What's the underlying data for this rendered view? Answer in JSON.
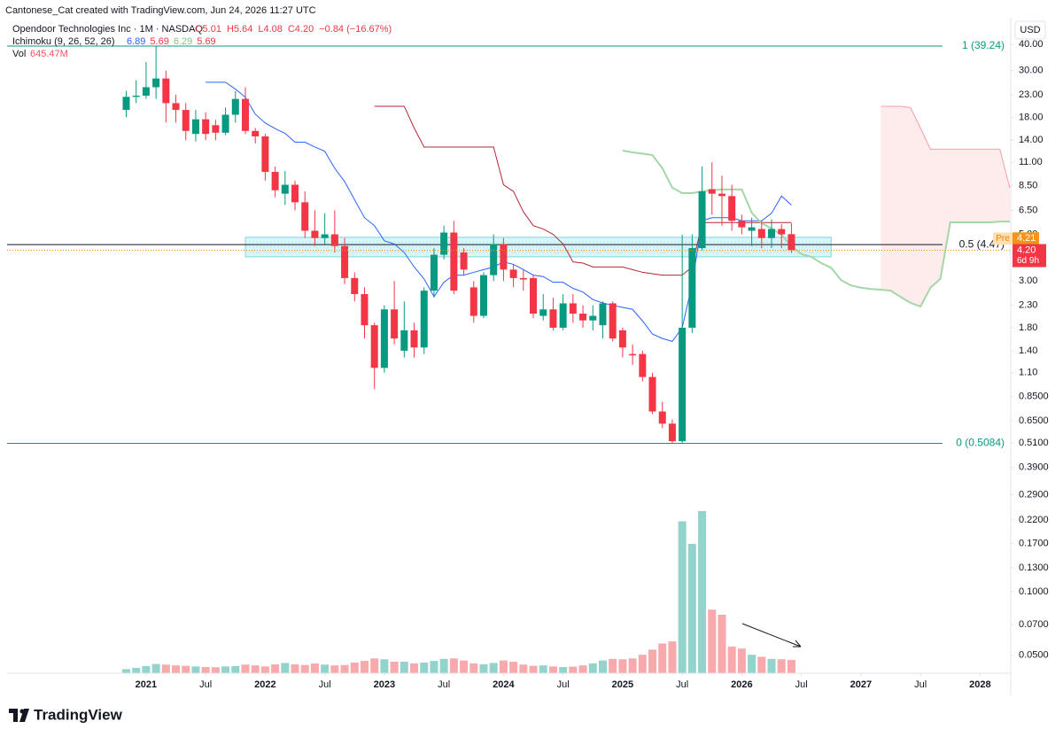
{
  "header": {
    "attribution": "Cantonese_Cat created with TradingView.com, Jun 24, 2026 11:27 UTC",
    "symbol": "Opendoor Technologies Inc · 1M · NASDAQ",
    "quote": [
      "O5.01",
      "H5.64",
      "L4.08",
      "C4.20",
      "−0.84 (−16.67%)"
    ],
    "indicator": "Ichimoku (9, 26, 52, 26)",
    "indicator_values": [
      "6.89",
      "5.69",
      "6.29",
      "5.69"
    ],
    "volume_label": "Vol",
    "volume_value": "645.47M"
  },
  "footer": {
    "brand": "TradingView"
  },
  "chart_data": {
    "type": "candlestick",
    "currency": "USD",
    "log_scale": true,
    "x": [
      "2020-11",
      "2020-12",
      "2021-01",
      "2021-02",
      "2021-03",
      "2021-04",
      "2021-05",
      "2021-06",
      "2021-07",
      "2021-08",
      "2021-09",
      "2021-10",
      "2021-11",
      "2021-12",
      "2022-01",
      "2022-02",
      "2022-03",
      "2022-04",
      "2022-05",
      "2022-06",
      "2022-07",
      "2022-08",
      "2022-09",
      "2022-10",
      "2022-11",
      "2022-12",
      "2023-01",
      "2023-02",
      "2023-03",
      "2023-04",
      "2023-05",
      "2023-06",
      "2023-07",
      "2023-08",
      "2023-09",
      "2023-10",
      "2023-11",
      "2023-12",
      "2024-01",
      "2024-02",
      "2024-03",
      "2024-04",
      "2024-05",
      "2024-06",
      "2024-07",
      "2024-08",
      "2024-09",
      "2024-10",
      "2024-11",
      "2024-12",
      "2025-01",
      "2025-02",
      "2025-03",
      "2025-04",
      "2025-05",
      "2025-06",
      "2025-07",
      "2025-08",
      "2025-09",
      "2025-10",
      "2025-11",
      "2025-12",
      "2026-01",
      "2026-02",
      "2026-03",
      "2026-04",
      "2026-05",
      "2026-06",
      "2026-07",
      "2026-08",
      "2026-09",
      "2026-10",
      "2026-11",
      "2026-12",
      "2027-01",
      "2027-02",
      "2027-03",
      "2027-04",
      "2027-05",
      "2027-06",
      "2027-07",
      "2027-08",
      "2027-09",
      "2027-10",
      "2027-11",
      "2027-12",
      "2028-01",
      "2028-02",
      "2028-03",
      "2028-04"
    ],
    "xlim": [
      "2019-11",
      "2028-04"
    ],
    "xticks": [
      {
        "value": "2021-01",
        "label": "2021"
      },
      {
        "value": "2021-07",
        "label": "Jul"
      },
      {
        "value": "2022-01",
        "label": "2022"
      },
      {
        "value": "2022-07",
        "label": "Jul"
      },
      {
        "value": "2023-01",
        "label": "2023"
      },
      {
        "value": "2023-07",
        "label": "Jul"
      },
      {
        "value": "2024-01",
        "label": "2024"
      },
      {
        "value": "2024-07",
        "label": "Jul"
      },
      {
        "value": "2025-01",
        "label": "2025"
      },
      {
        "value": "2025-07",
        "label": "Jul"
      },
      {
        "value": "2026-01",
        "label": "2026"
      },
      {
        "value": "2026-07",
        "label": "Jul"
      },
      {
        "value": "2027-01",
        "label": "2027"
      },
      {
        "value": "2027-07",
        "label": "Jul"
      },
      {
        "value": "2028-01",
        "label": "2028"
      }
    ],
    "ylim": [
      0.0411,
      41.97
    ],
    "yticks": [
      {
        "value": 40,
        "label": "40.00"
      },
      {
        "value": 30,
        "label": "30.00"
      },
      {
        "value": 23,
        "label": "23.00"
      },
      {
        "value": 18,
        "label": "18.00"
      },
      {
        "value": 14,
        "label": "14.00"
      },
      {
        "value": 11,
        "label": "11.00"
      },
      {
        "value": 8.5,
        "label": "8.50"
      },
      {
        "value": 6.5,
        "label": "6.50"
      },
      {
        "value": 5,
        "label": "5.00"
      },
      {
        "value": 3,
        "label": "3.00"
      },
      {
        "value": 2.3,
        "label": "2.30"
      },
      {
        "value": 1.8,
        "label": "1.80"
      },
      {
        "value": 1.4,
        "label": "1.40"
      },
      {
        "value": 1.1,
        "label": "1.10"
      },
      {
        "value": 0.85,
        "label": "0.8500"
      },
      {
        "value": 0.65,
        "label": "0.6500"
      },
      {
        "value": 0.51,
        "label": "0.5100"
      },
      {
        "value": 0.39,
        "label": "0.3900"
      },
      {
        "value": 0.29,
        "label": "0.2900"
      },
      {
        "value": 0.22,
        "label": "0.2200"
      },
      {
        "value": 0.17,
        "label": "0.1700"
      },
      {
        "value": 0.13,
        "label": "0.1300"
      },
      {
        "value": 0.1,
        "label": "0.1000"
      },
      {
        "value": 0.07,
        "label": "0.0700"
      },
      {
        "value": 0.05,
        "label": "0.0500"
      }
    ],
    "colors": {
      "up": "#089981",
      "down": "#f23645",
      "volume_up": "#92d3cc",
      "volume_down": "#f7a9ab"
    },
    "open": [
      19.5,
      22.5,
      22.8,
      25,
      27.5,
      21,
      19.5,
      15,
      17.6,
      16.5,
      15.2,
      18.5,
      22,
      15.5,
      14.6,
      9.9,
      7.8,
      8.6,
      7.1,
      5.2,
      4.8,
      5.0,
      4.4,
      3.1,
      2.6,
      1.85,
      1.16,
      2.2,
      1.4,
      1.75,
      1.45,
      2.7,
      4.0,
      5.1,
      4.1,
      2.8,
      2.05,
      3.2,
      4.5,
      3.4,
      3.1,
      3.1,
      2.05,
      2.2,
      1.8,
      2.35,
      2.1,
      1.95,
      1.85,
      2.35,
      1.75,
      1.35,
      1.35,
      1.05,
      0.72,
      0.63,
      0.52,
      1.8,
      4.3,
      8.2,
      7.8,
      7.6,
      5.8,
      5.2,
      5.3,
      4.8,
      5.3,
      5.01,
      null,
      null,
      null,
      null,
      null,
      null,
      null,
      null,
      null,
      null,
      null,
      null,
      null,
      null,
      null,
      null,
      null,
      null,
      null,
      null,
      null,
      null
    ],
    "high": [
      24,
      27,
      33,
      39.24,
      30,
      23,
      21,
      19.5,
      19,
      17.5,
      20,
      24,
      25,
      16,
      15,
      10.5,
      10,
      9,
      8,
      6.5,
      6.3,
      6.5,
      4.8,
      3.3,
      2.8,
      1.9,
      2.3,
      3.0,
      2.4,
      1.9,
      2.8,
      4.3,
      5.5,
      5.8,
      4.3,
      3.0,
      3.3,
      5.0,
      4.8,
      3.6,
      3.4,
      3.2,
      2.6,
      2.5,
      2.6,
      2.6,
      2.3,
      2.3,
      2.4,
      2.4,
      1.8,
      1.5,
      1.4,
      1.1,
      0.8,
      0.66,
      4.97,
      5.0,
      10.5,
      11,
      9.5,
      8.6,
      6.2,
      6.0,
      5.8,
      5.9,
      5.6,
      5.64,
      null,
      null,
      null,
      null,
      null,
      null,
      null,
      null,
      null,
      null,
      null,
      null,
      null,
      null,
      null,
      null,
      null,
      null,
      null,
      null,
      null,
      null
    ],
    "low": [
      18,
      21,
      22,
      22,
      17,
      17,
      14,
      13.8,
      14,
      14,
      14.8,
      17,
      15,
      13.5,
      9,
      7.5,
      6.9,
      6.5,
      4.8,
      4.4,
      4.5,
      4.1,
      2.9,
      2.4,
      1.6,
      0.92,
      1.1,
      1.5,
      1.3,
      1.3,
      1.35,
      2.5,
      3.8,
      2.6,
      3.2,
      1.9,
      2.0,
      3.0,
      3.0,
      2.8,
      2.7,
      2.0,
      1.95,
      1.75,
      1.75,
      1.9,
      1.8,
      1.75,
      1.6,
      1.55,
      1.3,
      1.2,
      1.0,
      0.7,
      0.6,
      0.5084,
      0.51,
      1.7,
      4.2,
      6.2,
      5.5,
      5.2,
      5.0,
      4.4,
      4.3,
      4.3,
      4.3,
      4.08,
      null,
      null,
      null,
      null,
      null,
      null,
      null,
      null,
      null,
      null,
      null,
      null,
      null,
      null,
      null,
      null,
      null,
      null,
      null,
      null,
      null,
      null
    ],
    "close": [
      22.5,
      22.8,
      25,
      27.5,
      21,
      19.5,
      15.5,
      17.6,
      15,
      15.2,
      18.5,
      22,
      15.5,
      14.6,
      9.9,
      8.1,
      8.6,
      7.1,
      5.2,
      4.8,
      5.0,
      4.4,
      3.1,
      2.6,
      1.85,
      1.16,
      2.2,
      1.6,
      1.75,
      1.45,
      2.7,
      4.0,
      5.1,
      2.7,
      3.4,
      2.05,
      3.2,
      4.5,
      3.4,
      3.1,
      3.05,
      2.1,
      2.2,
      1.8,
      2.35,
      2.1,
      1.95,
      2.05,
      2.35,
      1.6,
      1.45,
      1.33,
      1.05,
      0.72,
      0.63,
      0.52,
      1.8,
      4.3,
      8.0,
      7.8,
      7.6,
      5.8,
      5.4,
      5.4,
      4.8,
      5.3,
      5.0,
      4.2,
      null,
      null,
      null,
      null,
      null,
      null,
      null,
      null,
      null,
      null,
      null,
      null,
      null,
      null,
      null,
      null,
      null,
      null,
      null,
      null,
      null,
      null
    ],
    "volume": [
      200,
      260,
      350,
      450,
      420,
      380,
      360,
      330,
      300,
      290,
      330,
      350,
      420,
      380,
      330,
      430,
      500,
      430,
      400,
      470,
      420,
      380,
      400,
      520,
      600,
      720,
      680,
      560,
      560,
      480,
      520,
      600,
      700,
      720,
      620,
      480,
      440,
      500,
      620,
      560,
      420,
      360,
      380,
      330,
      300,
      320,
      380,
      480,
      620,
      700,
      680,
      720,
      900,
      1150,
      1450,
      1550,
      7400,
      6300,
      7900,
      3100,
      2850,
      1300,
      1200,
      900,
      800,
      700,
      680,
      645.47,
      null,
      null,
      null,
      null,
      null,
      null,
      null,
      null,
      null,
      null,
      null,
      null,
      null,
      null,
      null,
      null,
      null,
      null,
      null,
      null,
      null,
      null
    ],
    "volume_ylim": [
      0,
      8200
    ],
    "lines": [
      {
        "color": "#2962ff",
        "width": 1,
        "values": [
          null,
          null,
          null,
          null,
          null,
          null,
          null,
          null,
          26.4,
          26.4,
          26.4,
          24.5,
          22.4,
          18.6,
          16.9,
          15.9,
          15.1,
          13.7,
          13.7,
          13.0,
          12.4,
          10.3,
          8.9,
          7.3,
          6.0,
          5.5,
          4.66,
          4.5,
          4.1,
          3.5,
          3.07,
          2.53,
          2.96,
          3.2,
          3.2,
          3.3,
          3.4,
          3.5,
          3.7,
          3.6,
          3.4,
          3.2,
          3.15,
          2.96,
          2.96,
          2.77,
          2.66,
          2.45,
          2.36,
          2.3,
          2.25,
          2.2,
          1.94,
          1.68,
          1.6,
          1.55,
          1.8,
          2.9,
          5.8,
          6.0,
          6.0,
          6.0,
          5.8,
          5.8,
          5.8,
          6.3,
          7.6,
          6.89,
          null,
          null,
          null,
          null,
          null,
          null,
          null,
          null,
          null,
          null,
          null,
          null,
          null,
          null,
          null,
          null,
          null,
          null,
          null,
          null,
          null,
          null
        ]
      },
      {
        "color": "#b22833",
        "width": 1,
        "values": [
          null,
          null,
          null,
          null,
          null,
          null,
          null,
          null,
          null,
          null,
          null,
          null,
          null,
          null,
          null,
          null,
          null,
          null,
          null,
          null,
          null,
          null,
          null,
          null,
          null,
          20.3,
          20.3,
          20.3,
          20.3,
          16,
          13.0,
          13.0,
          13.0,
          13.0,
          13.0,
          13.0,
          13.0,
          13.0,
          8.6,
          8.0,
          6.4,
          5.5,
          5.3,
          5.0,
          4.5,
          3.7,
          3.65,
          3.5,
          3.5,
          3.5,
          3.5,
          3.4,
          3.3,
          3.25,
          3.2,
          3.2,
          3.2,
          3.5,
          5.69,
          5.69,
          5.69,
          5.69,
          5.69,
          5.69,
          5.69,
          5.69,
          5.69,
          5.69,
          null,
          null,
          null,
          null,
          null,
          null,
          null,
          null,
          null,
          null,
          null,
          null,
          null,
          null,
          null,
          null,
          null,
          null,
          null,
          null,
          null,
          null
        ]
      },
      {
        "color": "#a5d6a7",
        "width": 2,
        "values": [
          null,
          null,
          null,
          null,
          null,
          null,
          null,
          null,
          null,
          null,
          null,
          null,
          null,
          null,
          null,
          null,
          null,
          null,
          null,
          null,
          null,
          null,
          null,
          null,
          null,
          null,
          null,
          null,
          null,
          null,
          null,
          null,
          null,
          null,
          null,
          null,
          null,
          null,
          null,
          null,
          null,
          null,
          null,
          null,
          null,
          null,
          null,
          null,
          null,
          null,
          12.5,
          12.26,
          12.1,
          11.9,
          10.3,
          8.32,
          7.85,
          7.85,
          8.0,
          8.09,
          8.17,
          8.17,
          8.17,
          6.34,
          5.65,
          5.33,
          4.98,
          4.39,
          4.03,
          3.91,
          3.65,
          3.47,
          3.03,
          2.86,
          2.79,
          2.75,
          2.73,
          2.7,
          2.52,
          2.36,
          2.27,
          2.79,
          3.07,
          5.7,
          5.7,
          5.7,
          5.7,
          5.7,
          5.75,
          5.75
        ]
      }
    ],
    "cloud": {
      "color": "#f23645",
      "x": [
        "2027-03",
        "2027-04",
        "2027-05",
        "2027-06",
        "2027-07",
        "2027-08",
        "2027-09",
        "2027-10",
        "2027-11",
        "2027-12",
        "2028-01",
        "2028-02",
        "2028-03",
        "2028-04"
      ],
      "upper": [
        20.3,
        20.3,
        20.3,
        20,
        16,
        12.7,
        12.7,
        12.7,
        12.7,
        12.7,
        12.7,
        12.7,
        12.7,
        8.3
      ],
      "lower": [
        2.73,
        2.7,
        2.52,
        2.36,
        2.27,
        2.79,
        3.07,
        5.7,
        5.7,
        5.7,
        5.7,
        5.7,
        5.75,
        5.75
      ]
    },
    "levels": [
      {
        "value": 39.24,
        "label": "1 (39.24)",
        "color": "#089981"
      },
      {
        "value": 4.47,
        "label": "0.5 (4.47)",
        "color": "#131722"
      },
      {
        "value": 0.5084,
        "label": "0 (0.5084)",
        "color": "#089981"
      }
    ],
    "zone": {
      "x": [
        "2021-11",
        "2026-10"
      ],
      "range": [
        3.91,
        4.84
      ]
    },
    "last": {
      "value": 4.2,
      "label": "4.20",
      "countdown": "6d 9h"
    },
    "pre": {
      "label": "Pre",
      "value": 4.21
    }
  }
}
